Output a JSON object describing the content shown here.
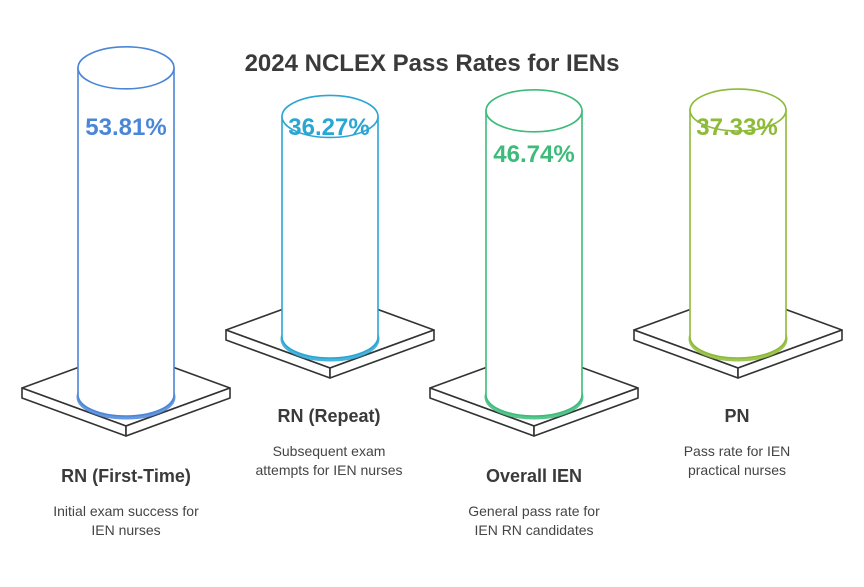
{
  "chart_data": {
    "type": "bar",
    "title": "2024 NCLEX Pass Rates for IENs",
    "categories": [
      "RN (First-Time)",
      "RN (Repeat)",
      "Overall IEN",
      "PN"
    ],
    "values": [
      53.81,
      36.27,
      46.74,
      37.33
    ],
    "value_labels": [
      "53.81%",
      "36.27%",
      "46.74%",
      "37.33%"
    ],
    "descriptions": [
      [
        "Initial exam success for",
        "IEN nurses"
      ],
      [
        "Subsequent exam",
        "attempts for IEN nurses"
      ],
      [
        "General pass rate for",
        "IEN RN candidates"
      ],
      [
        "Pass rate for IEN",
        "practical nurses"
      ]
    ],
    "colors": [
      "#4a86d8",
      "#2aa6d4",
      "#3dbb7a",
      "#8dbb38"
    ]
  }
}
